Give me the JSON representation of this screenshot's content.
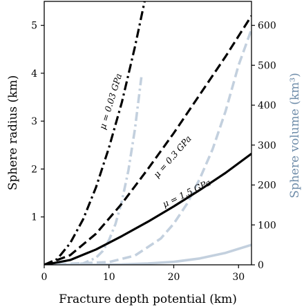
{
  "chart_data": {
    "type": "line",
    "xlabel": "Fracture depth potential (km)",
    "ylabel_left": "Sphere radius (km)",
    "ylabel_right": "Sphere volume (km³)",
    "xlim": [
      0,
      32
    ],
    "ylim_left": [
      0,
      5.5
    ],
    "ylim_right": [
      0,
      660
    ],
    "x_ticks": [
      "0",
      "10",
      "20",
      "30"
    ],
    "y_left_ticks": [
      "1",
      "2",
      "3",
      "4",
      "5"
    ],
    "y_right_ticks": [
      "0",
      "100",
      "200",
      "300",
      "400",
      "500",
      "600"
    ],
    "colors": {
      "radius": "#000000",
      "volume": "#c3d0de",
      "right_axis_label": "#6e8ca9"
    },
    "series": [
      {
        "name": "μ = 0.03 GPa",
        "axis": "left",
        "style": "dashdot",
        "x": [
          0,
          2,
          4,
          6,
          8,
          10,
          12,
          14,
          15.5
        ],
        "y": [
          0,
          0.12,
          0.45,
          0.95,
          1.62,
          2.45,
          3.4,
          4.55,
          5.5
        ]
      },
      {
        "name": "μ = 0.3 GPa",
        "axis": "left",
        "style": "dashed",
        "x": [
          0,
          4,
          8,
          12,
          16,
          20,
          24,
          28,
          32
        ],
        "y": [
          0,
          0.2,
          0.65,
          1.28,
          2.0,
          2.75,
          3.55,
          4.35,
          5.2
        ]
      },
      {
        "name": "μ = 1.5 GPa",
        "axis": "left",
        "style": "solid",
        "x": [
          0,
          4,
          8,
          12,
          16,
          20,
          24,
          28,
          32
        ],
        "y": [
          0,
          0.1,
          0.32,
          0.6,
          0.9,
          1.22,
          1.56,
          1.92,
          2.32
        ]
      },
      {
        "name": "volume μ = 0.03 GPa",
        "axis": "right",
        "style": "dashdot",
        "x": [
          0,
          4,
          6,
          8,
          9,
          10,
          11,
          12,
          13,
          14,
          15
        ],
        "y": [
          0,
          0.3,
          3.5,
          17.8,
          34,
          62,
          102,
          160,
          237,
          340,
          470
        ]
      },
      {
        "name": "volume μ = 0.3 GPa",
        "axis": "right",
        "style": "dashed",
        "x": [
          0,
          10,
          14,
          18,
          20,
          22,
          24,
          26,
          28,
          30,
          32
        ],
        "y": [
          0,
          7,
          23,
          66,
          103,
          152,
          215,
          290,
          385,
          500,
          590
        ]
      },
      {
        "name": "volume μ = 1.5 GPa",
        "axis": "right",
        "style": "solid",
        "x": [
          0,
          8,
          12,
          16,
          20,
          24,
          28,
          32
        ],
        "y": [
          0,
          0.2,
          1,
          3.4,
          7.5,
          16,
          30,
          50
        ]
      }
    ],
    "annotations": [
      "μ = 0.03 GPa",
      "μ = 0.3 GPa",
      "μ = 1.5 GPa"
    ]
  }
}
